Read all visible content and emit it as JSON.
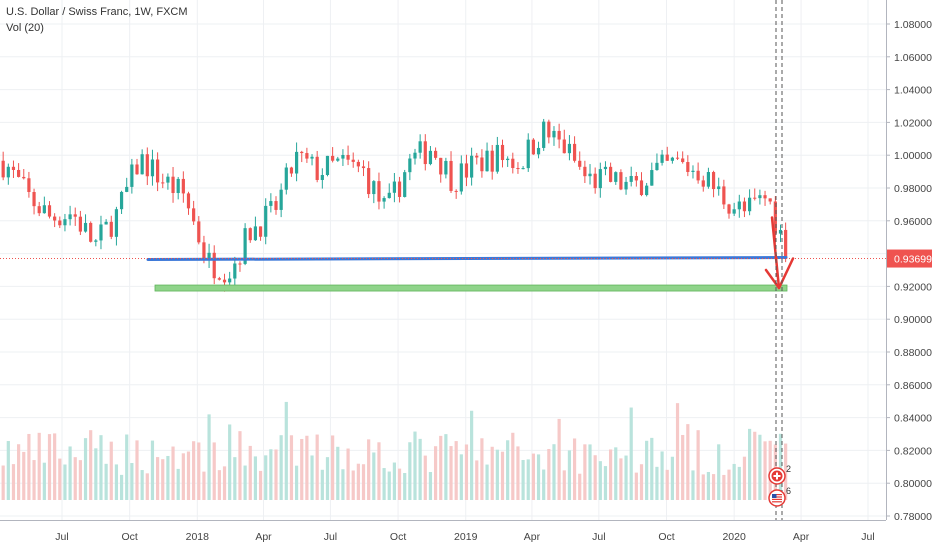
{
  "legend": {
    "symbol_line": "U.S. Dollar / Swiss Franc, 1W, FXCM",
    "volume_label": "Vol (20)"
  },
  "price_badge": "0.93699",
  "event_markers": [
    {
      "label": "2",
      "icon": "swiss-flag-icon"
    },
    {
      "label": "6",
      "icon": "us-flag-icon"
    }
  ],
  "colors": {
    "up": "#26a69a",
    "down": "#ef5350",
    "up_volume": "#b9e3dc",
    "down_volume": "#f6c9c8",
    "support_line": "#3c78d8",
    "support_zone": "#8fd48a",
    "price_badge": "#ef5350",
    "arrow": "#e53935"
  },
  "chart_data": {
    "type": "candlestick",
    "title": "U.S. Dollar / Swiss Franc, 1W, FXCM",
    "y_axis_ticks": [
      "1.08000",
      "1.06000",
      "1.04000",
      "1.02000",
      "1.00000",
      "0.98000",
      "0.96000",
      "0.94000",
      "0.92000",
      "0.90000",
      "0.88000",
      "0.86000",
      "0.84000",
      "0.82000",
      "0.80000",
      "0.78000"
    ],
    "ylim": [
      0.775,
      1.09
    ],
    "x_axis_ticks": [
      "Jul",
      "Oct",
      "2018",
      "Apr",
      "Jul",
      "Oct",
      "2019",
      "Apr",
      "Jul",
      "Oct",
      "2020",
      "Apr",
      "Jul"
    ],
    "x_axis_dates": [
      "2017-07-01",
      "2017-10-01",
      "2018-01-01",
      "2018-04-01",
      "2018-07-01",
      "2018-10-01",
      "2019-01-01",
      "2019-04-01",
      "2019-07-01",
      "2019-10-01",
      "2020-01-01",
      "2020-04-01",
      "2020-07-01"
    ],
    "last_price": 0.93699,
    "support_line_level": 0.937,
    "support_zone_level": 0.919,
    "close_series": [
      {
        "date": "2017-03",
        "close": 1.0
      },
      {
        "date": "2017-04",
        "close": 0.995
      },
      {
        "date": "2017-05",
        "close": 0.975
      },
      {
        "date": "2017-06",
        "close": 0.962
      },
      {
        "date": "2017-07",
        "close": 0.965
      },
      {
        "date": "2017-08",
        "close": 0.945
      },
      {
        "date": "2017-09",
        "close": 0.965
      },
      {
        "date": "2017-10",
        "close": 0.998
      },
      {
        "date": "2017-11",
        "close": 0.985
      },
      {
        "date": "2017-12",
        "close": 0.975
      },
      {
        "date": "2018-01",
        "close": 0.935
      },
      {
        "date": "2018-02",
        "close": 0.93
      },
      {
        "date": "2018-03",
        "close": 0.955
      },
      {
        "date": "2018-04",
        "close": 0.965
      },
      {
        "date": "2018-05",
        "close": 0.998
      },
      {
        "date": "2018-06",
        "close": 0.99
      },
      {
        "date": "2018-07",
        "close": 0.995
      },
      {
        "date": "2018-08",
        "close": 0.99
      },
      {
        "date": "2018-09",
        "close": 0.965
      },
      {
        "date": "2018-10",
        "close": 0.995
      },
      {
        "date": "2018-11",
        "close": 1.005
      },
      {
        "date": "2018-12",
        "close": 0.985
      },
      {
        "date": "2019-01",
        "close": 0.995
      },
      {
        "date": "2019-02",
        "close": 1.0
      },
      {
        "date": "2019-03",
        "close": 0.995
      },
      {
        "date": "2019-04",
        "close": 1.015
      },
      {
        "date": "2019-05",
        "close": 1.005
      },
      {
        "date": "2019-06",
        "close": 0.985
      },
      {
        "date": "2019-07",
        "close": 0.985
      },
      {
        "date": "2019-08",
        "close": 0.98
      },
      {
        "date": "2019-09",
        "close": 0.99
      },
      {
        "date": "2019-10",
        "close": 0.995
      },
      {
        "date": "2019-11",
        "close": 0.99
      },
      {
        "date": "2019-12",
        "close": 0.975
      },
      {
        "date": "2020-01",
        "close": 0.965
      },
      {
        "date": "2020-02",
        "close": 0.975
      },
      {
        "date": "2020-03",
        "close": 0.937
      }
    ]
  }
}
